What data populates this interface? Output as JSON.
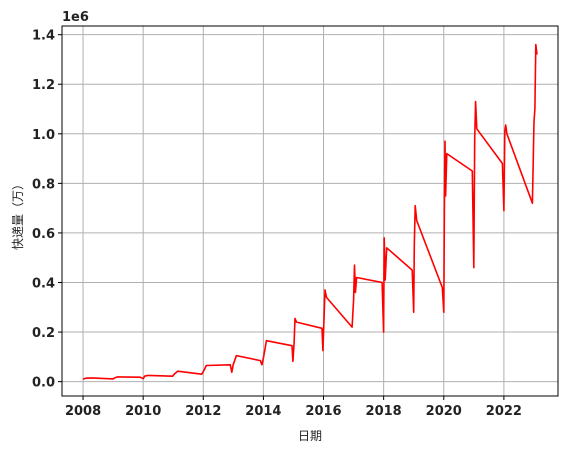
{
  "chart_data": {
    "type": "line",
    "title": "",
    "xlabel": "日期",
    "ylabel": "快递量（万）",
    "y_multiplier_label": "1e6",
    "xlim": [
      2007.3,
      2023.8
    ],
    "ylim": [
      -58000,
      1435000
    ],
    "x_ticks": [
      2008,
      2010,
      2012,
      2014,
      2016,
      2018,
      2020,
      2022
    ],
    "x_tick_labels": [
      "2008",
      "2010",
      "2012",
      "2014",
      "2016",
      "2018",
      "2020",
      "2022"
    ],
    "y_ticks": [
      0,
      200000,
      400000,
      600000,
      800000,
      1000000,
      1200000,
      1400000
    ],
    "y_tick_labels": [
      "0.0",
      "0.2",
      "0.4",
      "0.6",
      "0.8",
      "1.0",
      "1.2",
      "1.4"
    ],
    "grid": true,
    "series": [
      {
        "color": "#ff0000",
        "x": [
          2008.0,
          2008.1,
          2008.3,
          2009.0,
          2009.05,
          2009.15,
          2009.9,
          2010.0,
          2010.05,
          2010.15,
          2010.98,
          2011.05,
          2011.15,
          2011.95,
          2012.02,
          2012.1,
          2012.9,
          2012.95,
          2013.0,
          2013.1,
          2013.9,
          2013.95,
          2014.0,
          2014.1,
          2014.95,
          2014.98,
          2015.02,
          2015.05,
          2015.1,
          2015.95,
          2015.98,
          2016.02,
          2016.05,
          2016.1,
          2016.95,
          2017.0,
          2017.03,
          2017.06,
          2017.1,
          2017.95,
          2018.0,
          2018.02,
          2018.05,
          2018.1,
          2018.95,
          2019.0,
          2019.02,
          2019.05,
          2019.1,
          2019.95,
          2020.0,
          2020.02,
          2020.04,
          2020.06,
          2020.1,
          2020.95,
          2021.0,
          2021.03,
          2021.06,
          2021.1,
          2021.95,
          2022.0,
          2022.03,
          2022.06,
          2022.1,
          2022.95,
          2023.0,
          2023.03,
          2023.06,
          2023.1
        ],
        "y": [
          10000,
          14000,
          15000,
          11000,
          15000,
          19000,
          18000,
          12000,
          22000,
          25000,
          22000,
          32000,
          42000,
          30000,
          45000,
          65000,
          68000,
          38000,
          70000,
          105000,
          85000,
          68000,
          95000,
          165000,
          145000,
          82000,
          155000,
          255000,
          240000,
          215000,
          125000,
          265000,
          370000,
          340000,
          220000,
          330000,
          470000,
          360000,
          420000,
          400000,
          200000,
          580000,
          410000,
          540000,
          450000,
          280000,
          550000,
          710000,
          650000,
          380000,
          280000,
          700000,
          970000,
          750000,
          920000,
          850000,
          460000,
          980000,
          1130000,
          1020000,
          880000,
          690000,
          1010000,
          1035000,
          1000000,
          720000,
          1050000,
          1100000,
          1360000,
          1320000
        ]
      }
    ]
  }
}
